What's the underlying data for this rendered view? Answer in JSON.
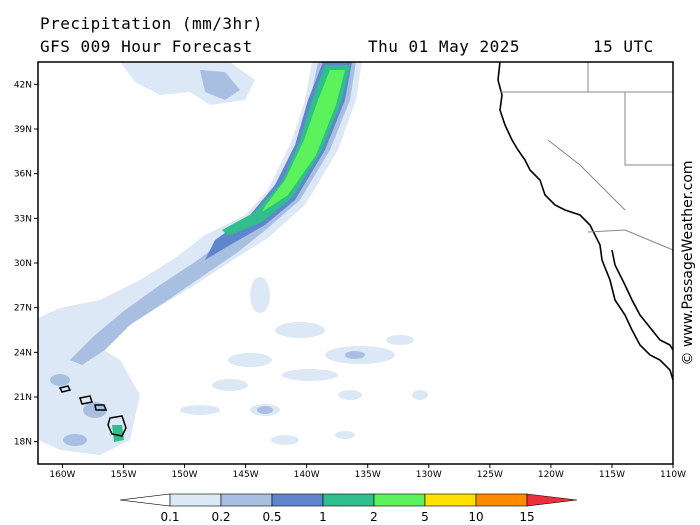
{
  "header": {
    "title": "Precipitation (mm/3hr)",
    "subtitle": "GFS 009 Hour Forecast",
    "date": "Thu 01 May 2025",
    "time": "15 UTC"
  },
  "credit": "© www.PassageWeather.com",
  "map": {
    "lon_range": [
      -162,
      -110
    ],
    "lat_range": [
      16.5,
      43.5
    ],
    "lat_ticks": [
      {
        "value": 42,
        "label": "42N"
      },
      {
        "value": 39,
        "label": "39N"
      },
      {
        "value": 36,
        "label": "36N"
      },
      {
        "value": 33,
        "label": "33N"
      },
      {
        "value": 30,
        "label": "30N"
      },
      {
        "value": 27,
        "label": "27N"
      },
      {
        "value": 24,
        "label": "24N"
      },
      {
        "value": 21,
        "label": "21N"
      },
      {
        "value": 18,
        "label": "18N"
      }
    ],
    "lon_ticks": [
      {
        "value": -160,
        "label": "160W"
      },
      {
        "value": -155,
        "label": "155W"
      },
      {
        "value": -150,
        "label": "150W"
      },
      {
        "value": -145,
        "label": "145W"
      },
      {
        "value": -140,
        "label": "140W"
      },
      {
        "value": -135,
        "label": "135W"
      },
      {
        "value": -130,
        "label": "130W"
      },
      {
        "value": -125,
        "label": "125W"
      },
      {
        "value": -120,
        "label": "120W"
      },
      {
        "value": -115,
        "label": "115W"
      },
      {
        "value": -110,
        "label": "110W"
      }
    ]
  },
  "legend": {
    "labels": [
      "0.1",
      "0.2",
      "0.5",
      "1",
      "2",
      "5",
      "10",
      "15"
    ],
    "colors": [
      "#ffffff",
      "#dde8f6",
      "#a8bfe2",
      "#5f86cd",
      "#2fbe8c",
      "#5cf25c",
      "#ffe000",
      "#ff8a00",
      "#ee2e3a"
    ]
  }
}
